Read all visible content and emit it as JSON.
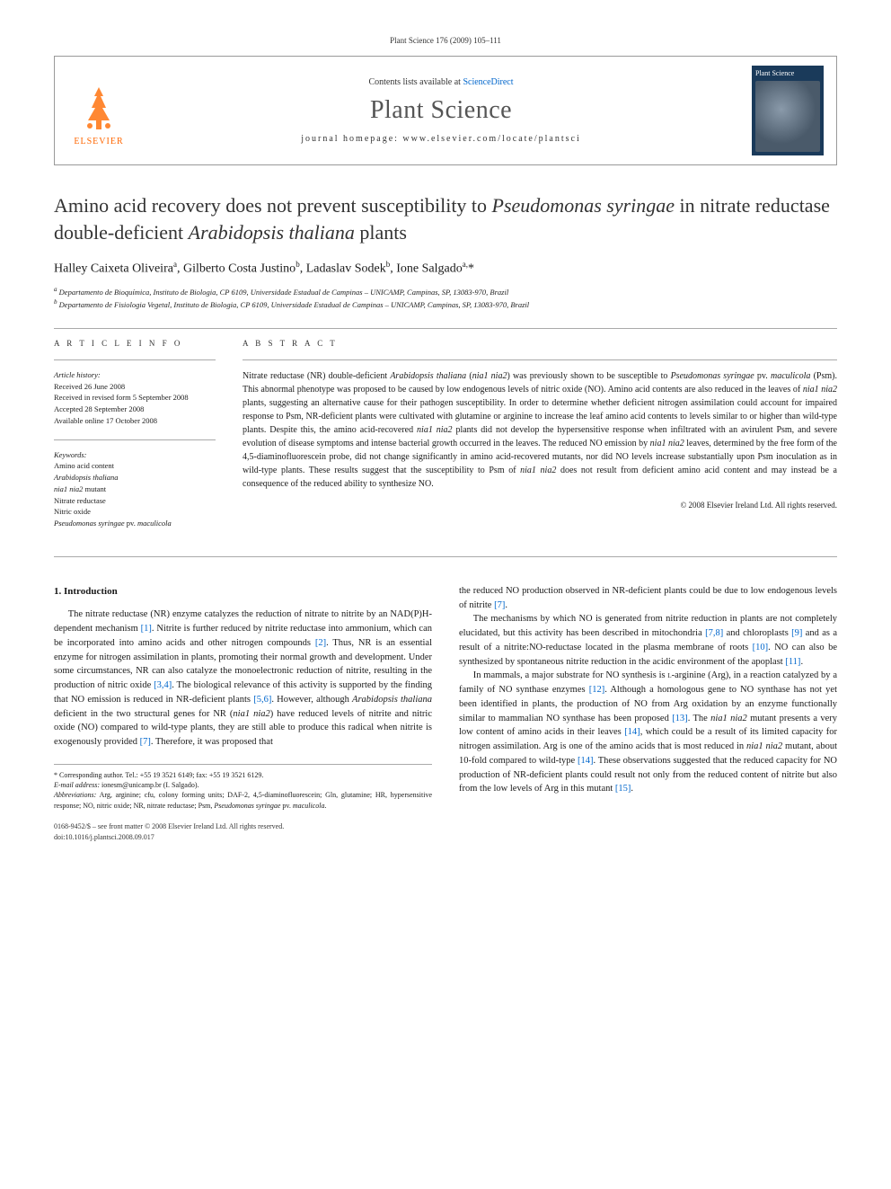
{
  "journalRef": "Plant Science 176 (2009) 105–111",
  "header": {
    "contentsPrefix": "Contents lists available at ",
    "contentsLink": "ScienceDirect",
    "journalName": "Plant Science",
    "homepageLabel": "journal homepage: www.elsevier.com/locate/plantsci",
    "elsevierLabel": "ELSEVIER",
    "coverTitle": "Plant Science"
  },
  "title": "Amino acid recovery does not prevent susceptibility to <em>Pseudomonas syringae</em> in nitrate reductase double-deficient <em>Arabidopsis thaliana</em> plants",
  "authors": "Halley Caixeta Oliveira<sup>a</sup>, Gilberto Costa Justino<sup>b</sup>, Ladaslav Sodek<sup>b</sup>, Ione Salgado<sup>a,</sup>*",
  "affiliations": [
    "<sup>a</sup> Departamento de Bioquímica, Instituto de Biologia, CP 6109, Universidade Estadual de Campinas – UNICAMP, Campinas, SP, 13083-970, Brazil",
    "<sup>b</sup> Departamento de Fisiologia Vegetal, Instituto de Biologia, CP 6109, Universidade Estadual de Campinas – UNICAMP, Campinas, SP, 13083-970, Brazil"
  ],
  "articleInfo": {
    "heading": "A R T I C L E  I N F O",
    "historyHeading": "Article history:",
    "history": [
      "Received 26 June 2008",
      "Received in revised form 5 September 2008",
      "Accepted 28 September 2008",
      "Available online 17 October 2008"
    ],
    "keywordsHeading": "Keywords:",
    "keywords": [
      "Amino acid content",
      "<em>Arabidopsis thaliana</em>",
      "<em>nia1 nia2</em> mutant",
      "Nitrate reductase",
      "Nitric oxide",
      "<em>Pseudomonas syringae</em> pv. <em>maculicola</em>"
    ]
  },
  "abstract": {
    "heading": "A B S T R A C T",
    "text": "Nitrate reductase (NR) double-deficient <em>Arabidopsis thaliana</em> (<em>nia1 nia2</em>) was previously shown to be susceptible to <em>Pseudomonas syringae</em> pv. <em>maculicola</em> (Psm). This abnormal phenotype was proposed to be caused by low endogenous levels of nitric oxide (NO). Amino acid contents are also reduced in the leaves of <em>nia1 nia2</em> plants, suggesting an alternative cause for their pathogen susceptibility. In order to determine whether deficient nitrogen assimilation could account for impaired response to Psm, NR-deficient plants were cultivated with glutamine or arginine to increase the leaf amino acid contents to levels similar to or higher than wild-type plants. Despite this, the amino acid-recovered <em>nia1 nia2</em> plants did not develop the hypersensitive response when infiltrated with an avirulent Psm, and severe evolution of disease symptoms and intense bacterial growth occurred in the leaves. The reduced NO emission by <em>nia1 nia2</em> leaves, determined by the free form of the 4,5-diaminofluorescein probe, did not change significantly in amino acid-recovered mutants, nor did NO levels increase substantially upon Psm inoculation as in wild-type plants. These results suggest that the susceptibility to Psm of <em>nia1 nia2</em> does not result from deficient amino acid content and may instead be a consequence of the reduced ability to synthesize NO.",
    "copyright": "© 2008 Elsevier Ireland Ltd. All rights reserved."
  },
  "body": {
    "sectionHeading": "1. Introduction",
    "col1": [
      "The nitrate reductase (NR) enzyme catalyzes the reduction of nitrate to nitrite by an NAD(P)H-dependent mechanism <span class=\"ref-link\">[1]</span>. Nitrite is further reduced by nitrite reductase into ammonium, which can be incorporated into amino acids and other nitrogen compounds <span class=\"ref-link\">[2]</span>. Thus, NR is an essential enzyme for nitrogen assimilation in plants, promoting their normal growth and development. Under some circumstances, NR can also catalyze the monoelectronic reduction of nitrite, resulting in the production of nitric oxide <span class=\"ref-link\">[3,4]</span>. The biological relevance of this activity is supported by the finding that NO emission is reduced in NR-deficient plants <span class=\"ref-link\">[5,6]</span>. However, although <em>Arabidopsis thaliana</em> deficient in the two structural genes for NR (<em>nia1 nia2</em>) have reduced levels of nitrite and nitric oxide (NO) compared to wild-type plants, they are still able to produce this radical when nitrite is exogenously provided <span class=\"ref-link\">[7]</span>. Therefore, it was proposed that"
    ],
    "col2": [
      "the reduced NO production observed in NR-deficient plants could be due to low endogenous levels of nitrite <span class=\"ref-link\">[7]</span>.",
      "The mechanisms by which NO is generated from nitrite reduction in plants are not completely elucidated, but this activity has been described in mitochondria <span class=\"ref-link\">[7,8]</span> and chloroplasts <span class=\"ref-link\">[9]</span> and as a result of a nitrite:NO-reductase located in the plasma membrane of roots <span class=\"ref-link\">[10]</span>. NO can also be synthesized by spontaneous nitrite reduction in the acidic environment of the apoplast <span class=\"ref-link\">[11]</span>.",
      "In mammals, a major substrate for NO synthesis is <span style=\"font-variant:small-caps\">l</span>-arginine (Arg), in a reaction catalyzed by a family of NO synthase enzymes <span class=\"ref-link\">[12]</span>. Although a homologous gene to NO synthase has not yet been identified in plants, the production of NO from Arg oxidation by an enzyme functionally similar to mammalian NO synthase has been proposed <span class=\"ref-link\">[13]</span>. The <em>nia1 nia2</em> mutant presents a very low content of amino acids in their leaves <span class=\"ref-link\">[14]</span>, which could be a result of its limited capacity for nitrogen assimilation. Arg is one of the amino acids that is most reduced in <em>nia1 nia2</em> mutant, about 10-fold compared to wild-type <span class=\"ref-link\">[14]</span>. These observations suggested that the reduced capacity for NO production of NR-deficient plants could result not only from the reduced content of nitrite but also from the low levels of Arg in this mutant <span class=\"ref-link\">[15]</span>."
    ]
  },
  "footnotes": {
    "corresponding": "* Corresponding author. Tel.: +55 19 3521 6149; fax: +55 19 3521 6129.",
    "email": "<em>E-mail address:</em> ionesm@unicamp.br (I. Salgado).",
    "abbrev": "<em>Abbreviations:</em> Arg, arginine; cfu, colony forming units; DAF-2, 4,5-diaminofluorescein; Gln, glutamine; HR, hypersensitive response; NO, nitric oxide; NR, nitrate reductase; Psm, <em>Pseudomonas syringae</em> pv. <em>maculicola</em>."
  },
  "footer": {
    "line1": "0168-9452/$ – see front matter © 2008 Elsevier Ireland Ltd. All rights reserved.",
    "line2": "doi:10.1016/j.plantsci.2008.09.017"
  },
  "colors": {
    "link": "#0066cc",
    "elsevier": "#ff6600",
    "text": "#1a1a1a",
    "border": "#999999"
  }
}
